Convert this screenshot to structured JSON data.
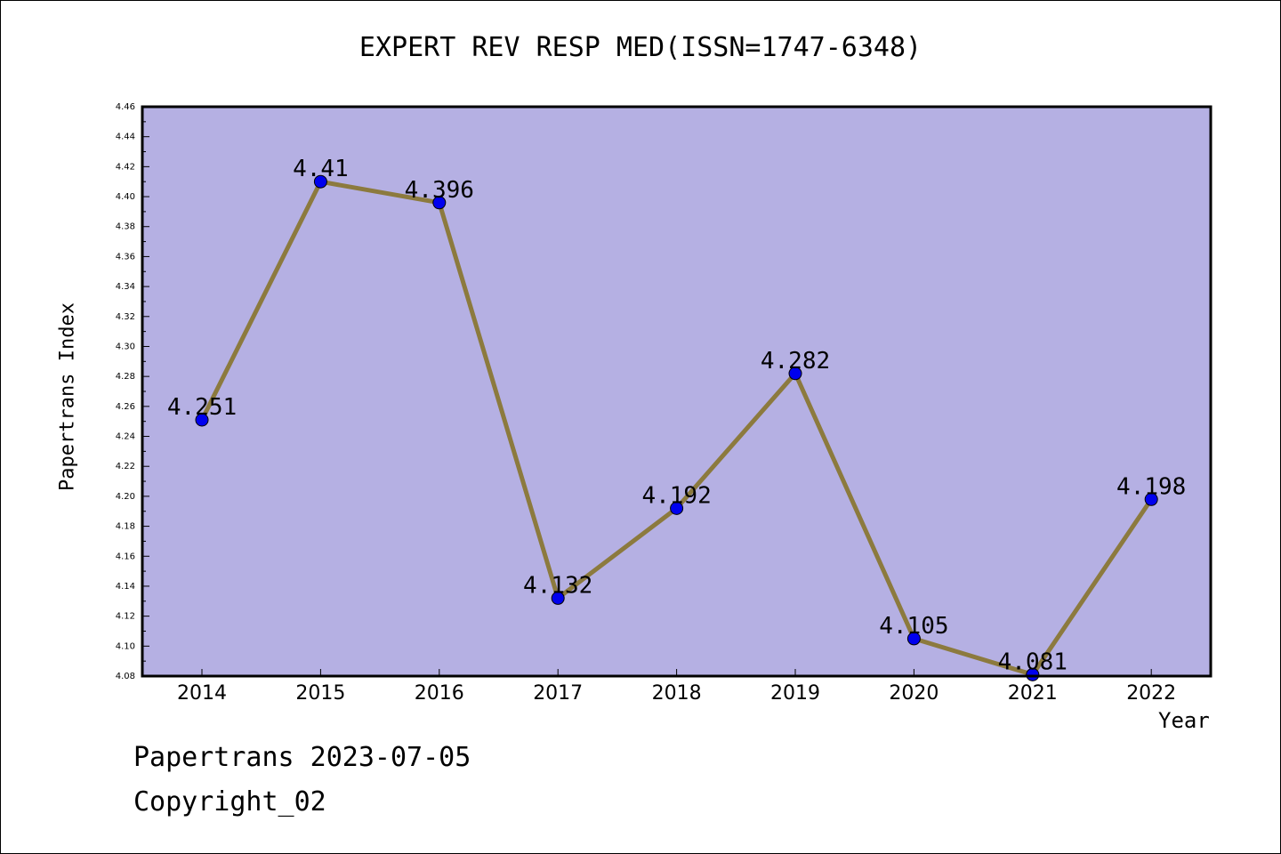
{
  "chart_data": {
    "type": "line",
    "title": "EXPERT REV RESP MED(ISSN=1747-6348)",
    "xlabel": "Year",
    "ylabel": "Papertrans Index",
    "x": [
      "2014",
      "2015",
      "2016",
      "2017",
      "2018",
      "2019",
      "2020",
      "2021",
      "2022"
    ],
    "values": [
      4.251,
      4.41,
      4.396,
      4.132,
      4.192,
      4.282,
      4.105,
      4.081,
      4.198
    ],
    "data_labels": [
      "4.251",
      "4.41",
      "4.396",
      "4.132",
      "4.192",
      "4.282",
      "4.105",
      "4.081",
      "4.198"
    ],
    "ylim": [
      4.08,
      4.46
    ],
    "yticks": [
      "4.08",
      "4.10",
      "4.12",
      "4.14",
      "4.16",
      "4.18",
      "4.20",
      "4.22",
      "4.24",
      "4.26",
      "4.28",
      "4.30",
      "4.32",
      "4.34",
      "4.36",
      "4.38",
      "4.40",
      "4.42",
      "4.44",
      "4.46"
    ],
    "grid": false,
    "colors": {
      "plot_background": "#b5b0e3",
      "line": "#8c7a3e",
      "marker": "#0000ee"
    }
  },
  "footer": {
    "line1": "Papertrans 2023-07-05",
    "line2": "Copyright_02"
  }
}
